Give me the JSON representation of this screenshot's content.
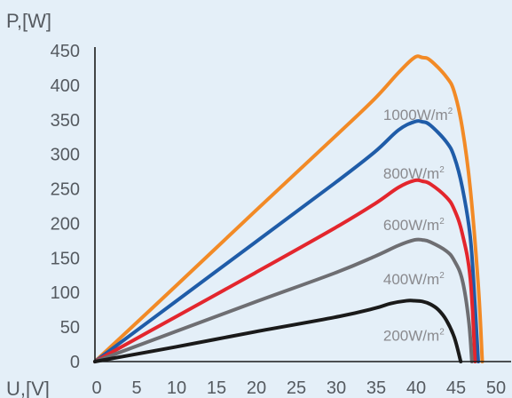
{
  "chart_data": {
    "type": "line",
    "title": "",
    "xlabel": "U,[V]",
    "ylabel": "P,[W]",
    "xlim": [
      0,
      50
    ],
    "ylim": [
      0,
      450
    ],
    "x_ticks": [
      "0",
      "5",
      "10",
      "15",
      "20",
      "25",
      "30",
      "35",
      "40",
      "45",
      "50"
    ],
    "y_ticks": [
      "0",
      "50",
      "100",
      "150",
      "200",
      "250",
      "300",
      "350",
      "400",
      "450"
    ],
    "grid": false,
    "series": [
      {
        "name": "1000W/m²",
        "color": "#f28a26",
        "points": [
          [
            0,
            0
          ],
          [
            10,
            108
          ],
          [
            20,
            217
          ],
          [
            30,
            325
          ],
          [
            35,
            380
          ],
          [
            38,
            418
          ],
          [
            40,
            440
          ],
          [
            41,
            440
          ],
          [
            42,
            436
          ],
          [
            44,
            412
          ],
          [
            45,
            390
          ],
          [
            46,
            338
          ],
          [
            47,
            250
          ],
          [
            48,
            110
          ],
          [
            48.5,
            0
          ]
        ]
      },
      {
        "name": "800W/m²",
        "color": "#1f5ca8",
        "points": [
          [
            0,
            0
          ],
          [
            10,
            86
          ],
          [
            20,
            172
          ],
          [
            30,
            258
          ],
          [
            35,
            303
          ],
          [
            38,
            335
          ],
          [
            40,
            347
          ],
          [
            41,
            347
          ],
          [
            42,
            342
          ],
          [
            44,
            318
          ],
          [
            45,
            296
          ],
          [
            46,
            252
          ],
          [
            47,
            180
          ],
          [
            47.6,
            80
          ],
          [
            48,
            0
          ]
        ]
      },
      {
        "name": "600W/m²",
        "color": "#e3262d",
        "points": [
          [
            0,
            0
          ],
          [
            10,
            64
          ],
          [
            20,
            128
          ],
          [
            30,
            193
          ],
          [
            35,
            228
          ],
          [
            38,
            252
          ],
          [
            40,
            262
          ],
          [
            41,
            261
          ],
          [
            42,
            257
          ],
          [
            44,
            238
          ],
          [
            45,
            220
          ],
          [
            46,
            185
          ],
          [
            47,
            120
          ],
          [
            47.6,
            0
          ]
        ]
      },
      {
        "name": "400W/m²",
        "color": "#6e6e72",
        "points": [
          [
            0,
            0
          ],
          [
            10,
            43
          ],
          [
            20,
            86
          ],
          [
            30,
            128
          ],
          [
            35,
            152
          ],
          [
            38,
            168
          ],
          [
            40,
            176
          ],
          [
            41,
            176
          ],
          [
            42,
            173
          ],
          [
            44,
            160
          ],
          [
            45,
            146
          ],
          [
            46,
            118
          ],
          [
            46.8,
            60
          ],
          [
            47.2,
            0
          ]
        ]
      },
      {
        "name": "200W/m²",
        "color": "#1a1a1a",
        "points": [
          [
            0,
            0
          ],
          [
            10,
            21
          ],
          [
            20,
            43
          ],
          [
            30,
            64
          ],
          [
            35,
            77
          ],
          [
            37,
            84
          ],
          [
            39,
            88
          ],
          [
            40,
            88
          ],
          [
            41,
            87
          ],
          [
            42,
            83
          ],
          [
            43,
            75
          ],
          [
            44,
            60
          ],
          [
            45,
            35
          ],
          [
            45.8,
            0
          ]
        ]
      }
    ],
    "annotations": [
      {
        "text": "1000W/m",
        "superscript": "2",
        "x": 36.1,
        "y": 350
      },
      {
        "text": "800W/m",
        "superscript": "2",
        "x": 36.1,
        "y": 265
      },
      {
        "text": "600W/m",
        "superscript": "2",
        "x": 36.1,
        "y": 190
      },
      {
        "text": "400W/m",
        "superscript": "2",
        "x": 36.1,
        "y": 112
      },
      {
        "text": "200W/m",
        "superscript": "2",
        "x": 36.1,
        "y": 30
      }
    ],
    "colors": {
      "background": "#e4eff8",
      "axis": "#1a1a1a",
      "tick_label": "#555a60",
      "annotation": "#8a8a8e"
    }
  }
}
